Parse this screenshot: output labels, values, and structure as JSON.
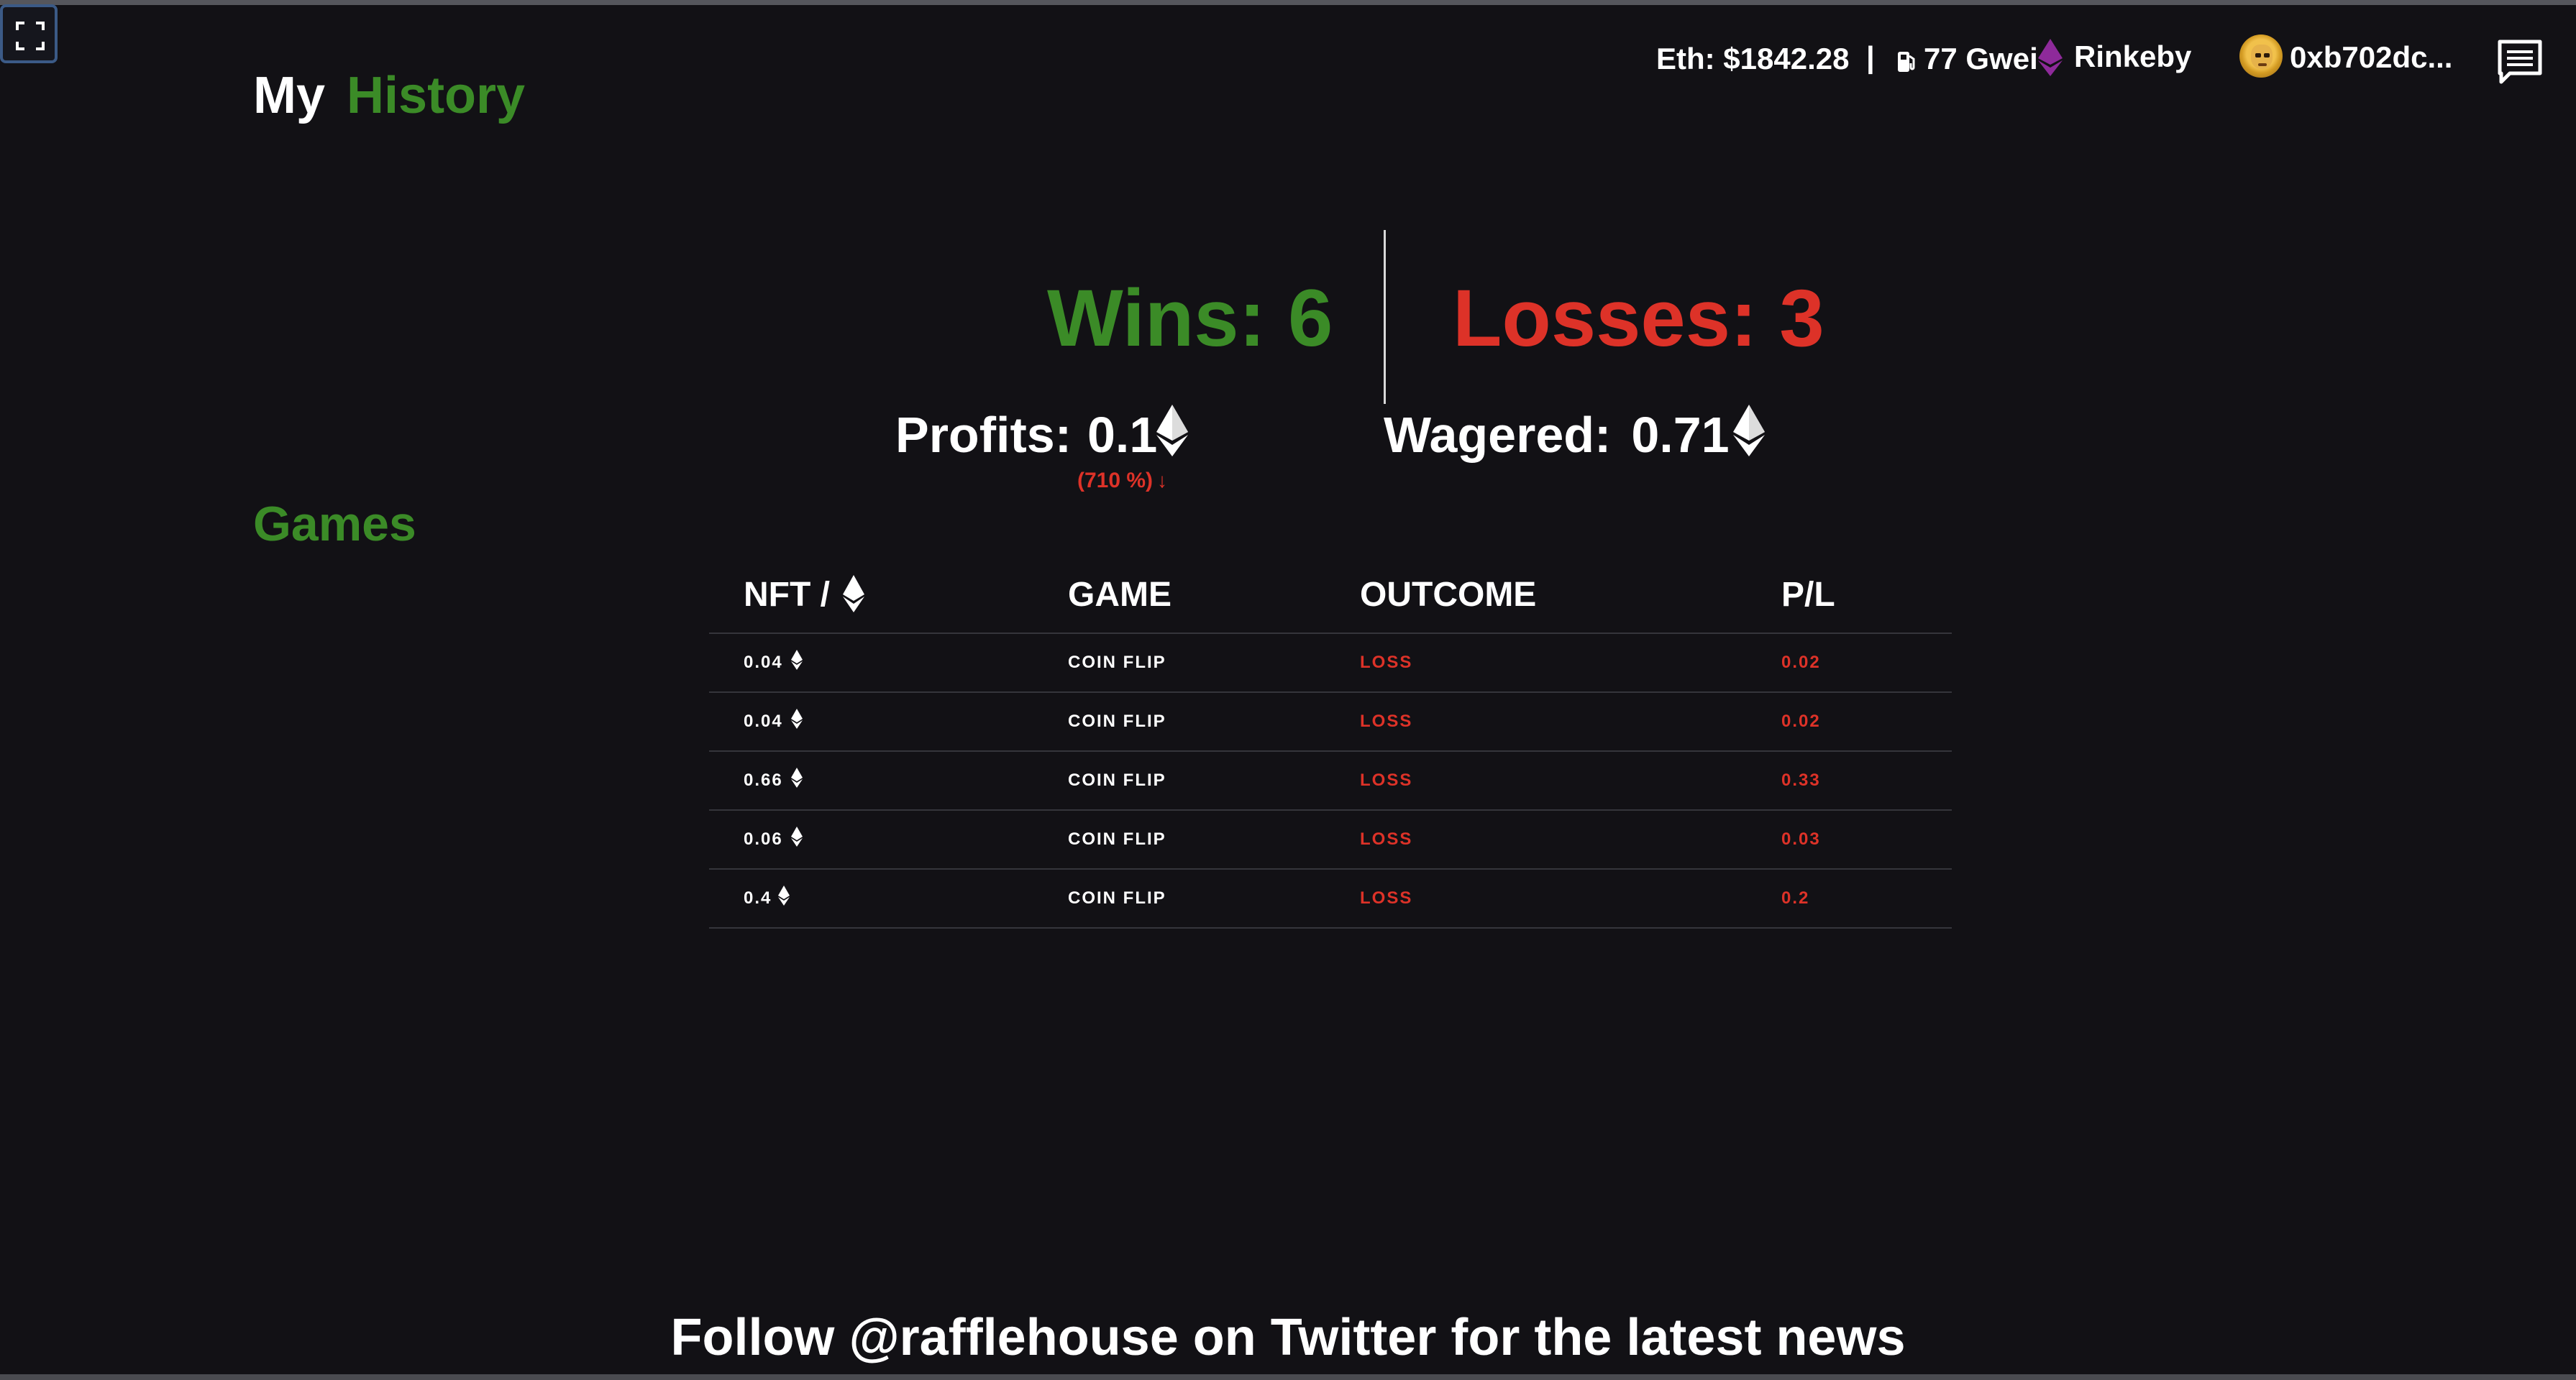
{
  "header": {
    "eth_price": "Eth: $1842.28",
    "separator": "|",
    "gas": "77 Gwei",
    "network": "Rinkeby",
    "address": "0xb702dc..."
  },
  "page_title": {
    "my": "My",
    "history": "History"
  },
  "stats": {
    "wins": "Wins: 6",
    "losses": "Losses: 3",
    "profits_label": "Profits:",
    "profits_value": "0.1",
    "profits_percent": "(710 %)",
    "profits_arrow": "↓",
    "wagered_label": "Wagered:",
    "wagered_value": "0.71"
  },
  "games": {
    "heading": "Games",
    "columns": {
      "nft": "NFT /",
      "game": "GAME",
      "outcome": "OUTCOME",
      "pl": "P/L"
    },
    "rows": [
      {
        "nft": "0.04",
        "game": "COIN FLIP",
        "outcome": "LOSS",
        "pl": "0.02"
      },
      {
        "nft": "0.04",
        "game": "COIN FLIP",
        "outcome": "LOSS",
        "pl": "0.02"
      },
      {
        "nft": "0.66",
        "game": "COIN FLIP",
        "outcome": "LOSS",
        "pl": "0.33"
      },
      {
        "nft": "0.06",
        "game": "COIN FLIP",
        "outcome": "LOSS",
        "pl": "0.03"
      },
      {
        "nft": "0.4",
        "game": "COIN FLIP",
        "outcome": "LOSS",
        "pl": "0.2"
      }
    ]
  },
  "footer": {
    "text": "Follow @rafflehouse on Twitter for the latest news"
  },
  "icons": {
    "expand": "expand-icon",
    "gas": "gas-pump-icon",
    "network": "ethereum-icon",
    "chat": "chat-icon",
    "currency": "ethereum-icon"
  },
  "colors": {
    "background": "#121115",
    "accent_green": "#3b8b27",
    "loss_red": "#dd3228",
    "network_purple": "#8e2a9a"
  }
}
